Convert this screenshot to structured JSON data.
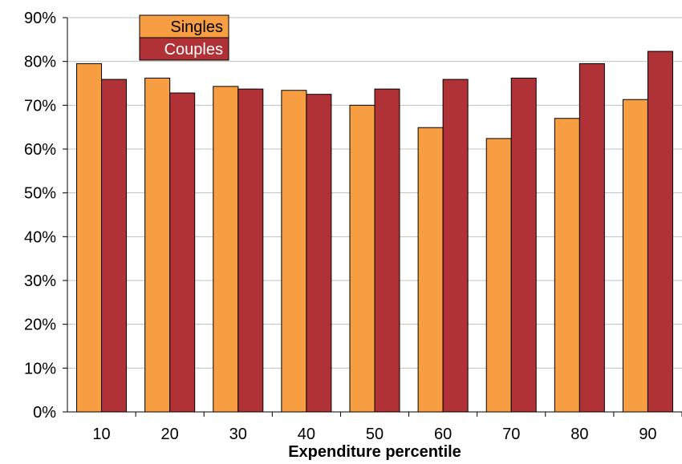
{
  "chart_data": {
    "type": "bar",
    "categories": [
      "10",
      "20",
      "30",
      "40",
      "50",
      "60",
      "70",
      "80",
      "90"
    ],
    "series": [
      {
        "name": "Singles",
        "color": "#F79E43",
        "values": [
          79.5,
          76.2,
          74.3,
          73.4,
          70.0,
          64.9,
          62.4,
          67.0,
          71.3
        ]
      },
      {
        "name": "Couples",
        "color": "#B03236",
        "values": [
          75.9,
          72.8,
          73.7,
          72.5,
          73.7,
          75.9,
          76.2,
          79.5,
          82.3
        ]
      }
    ],
    "title": "",
    "xlabel": "Expenditure percentile",
    "ylabel": "",
    "ylim": [
      0,
      90
    ],
    "yticks": [
      "0%",
      "10%",
      "20%",
      "30%",
      "40%",
      "50%",
      "60%",
      "70%",
      "80%",
      "90%"
    ],
    "grid": true,
    "legend": "top-left"
  }
}
